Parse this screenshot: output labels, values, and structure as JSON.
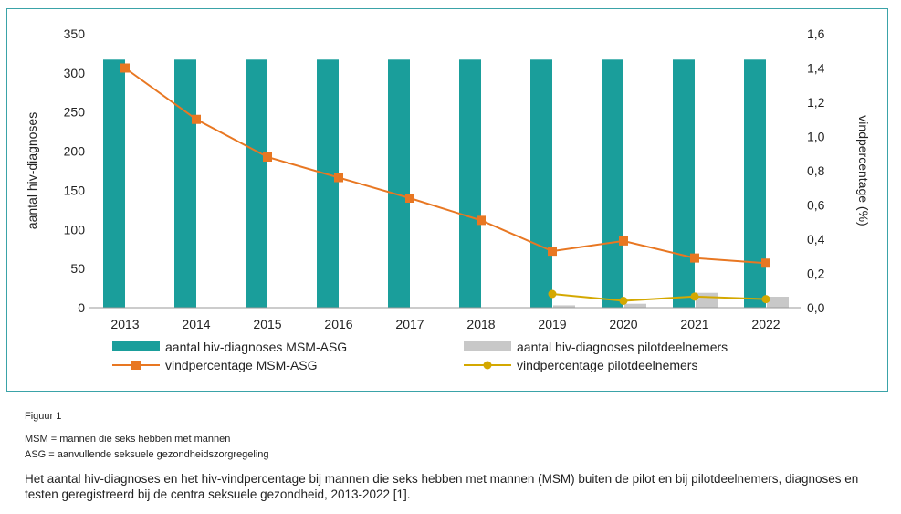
{
  "chart_data": {
    "type": "bar",
    "categories": [
      "2013",
      "2014",
      "2015",
      "2016",
      "2017",
      "2018",
      "2019",
      "2020",
      "2021",
      "2022"
    ],
    "series": [
      {
        "name": "aantal hiv-diagnoses MSM-ASG",
        "kind": "bar",
        "axis": "left",
        "color": "#1a9e9b",
        "values": [
          317,
          317,
          317,
          317,
          317,
          317,
          317,
          317,
          317,
          317
        ]
      },
      {
        "name": "aantal hiv-diagnoses pilotdeelnemers",
        "kind": "bar",
        "axis": "left",
        "color": "#c8c8c8",
        "values": [
          null,
          null,
          null,
          null,
          null,
          null,
          3,
          5,
          19,
          14
        ]
      },
      {
        "name": "vindpercentage MSM-ASG",
        "kind": "line",
        "axis": "right",
        "color": "#e87722",
        "marker": "square",
        "values": [
          1.4,
          1.1,
          0.88,
          0.76,
          0.64,
          0.51,
          0.33,
          0.39,
          0.29,
          0.26
        ]
      },
      {
        "name": "vindpercentage pilotdeelnemers",
        "kind": "line",
        "axis": "right",
        "color": "#d4a800",
        "marker": "circle",
        "values": [
          null,
          null,
          null,
          null,
          null,
          null,
          0.08,
          0.04,
          0.065,
          0.05
        ]
      }
    ],
    "ylabel": "aantal hiv-diagnoses",
    "y2label": "vindpercentage (%)",
    "ylim": [
      0,
      350
    ],
    "y2lim": [
      0,
      1.6
    ],
    "yticks": [
      "0",
      "50",
      "100",
      "150",
      "200",
      "250",
      "300",
      "350"
    ],
    "y2ticks": [
      "0,0",
      "0,2",
      "0,4",
      "0,6",
      "0,8",
      "1,0",
      "1,2",
      "1,4",
      "1,6"
    ],
    "grid": false,
    "legend_position": "bottom"
  },
  "figure_label": "Figuur 1",
  "notes": {
    "msm": "MSM = mannen die seks hebben met mannen",
    "asg": "ASG = aanvullende seksuele gezondheidszorgregeling"
  },
  "caption": "Het aantal hiv-diagnoses en het hiv-vindpercentage bij mannen die seks hebben met mannen (MSM) buiten de pilot en bij pilotdeelnemers, diagnoses en testen geregistreerd bij de centra seksuele gezondheid, 2013-2022 [1]."
}
